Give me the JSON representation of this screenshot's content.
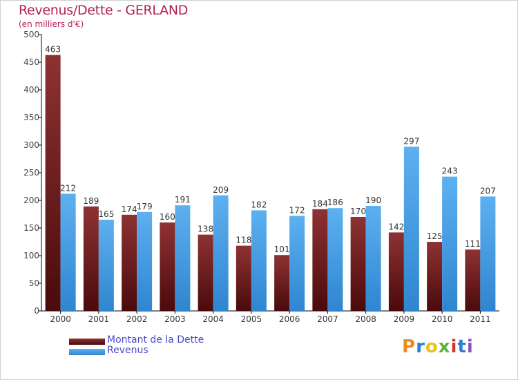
{
  "chart_data": {
    "type": "bar",
    "title": "Revenus/Dette - GERLAND",
    "subtitle": "(en milliers d'€)",
    "categories": [
      "2000",
      "2001",
      "2002",
      "2003",
      "2004",
      "2005",
      "2006",
      "2007",
      "2008",
      "2009",
      "2010",
      "2011"
    ],
    "series": [
      {
        "name": "Montant de la Dette",
        "color": "#7a1e20",
        "values": [
          463,
          189,
          174,
          160,
          138,
          118,
          101,
          184,
          170,
          142,
          125,
          111
        ]
      },
      {
        "name": "Revenus",
        "color": "#4ea3e8",
        "values": [
          212,
          165,
          179,
          191,
          209,
          182,
          172,
          186,
          190,
          297,
          243,
          207
        ]
      }
    ],
    "ylim": [
      0,
      500
    ],
    "yticks": [
      0,
      50,
      100,
      150,
      200,
      250,
      300,
      350,
      400,
      450,
      500
    ],
    "grid": false,
    "legend": "bottom-left"
  },
  "logo": {
    "text": "Proxiti",
    "colors": [
      "#f08a1c",
      "#2a7fd4",
      "#e8c21a",
      "#5bb53a",
      "#d3342a",
      "#2a7fd4",
      "#8a4fb8"
    ]
  }
}
